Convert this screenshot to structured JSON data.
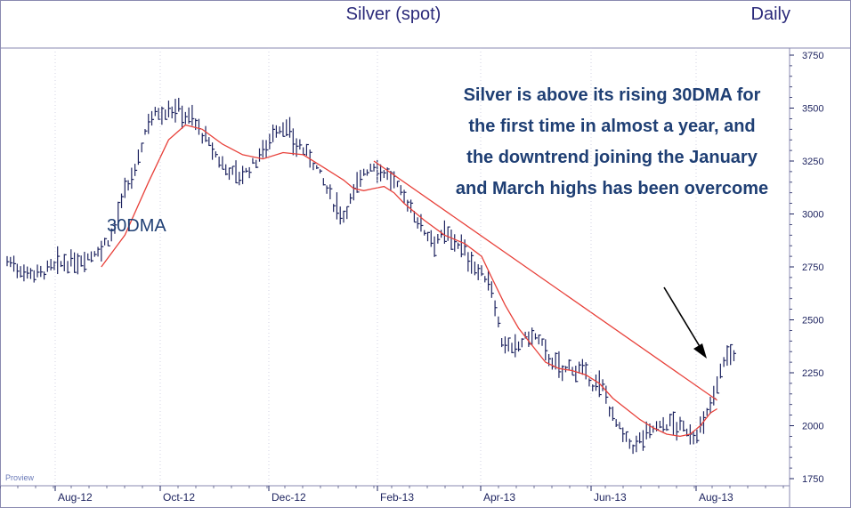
{
  "chart_data": {
    "type": "bar",
    "title": "Silver (spot)",
    "period": "Daily",
    "watermark": "Proview",
    "ylim": [
      1700,
      3800
    ],
    "y_ticks": [
      1750,
      2000,
      2250,
      2500,
      2750,
      3000,
      3250,
      3500,
      3750
    ],
    "x_ticks": [
      "Aug-12",
      "Oct-12",
      "Dec-12",
      "Feb-13",
      "Apr-13",
      "Jun-13",
      "Aug-13"
    ],
    "ma_label": "30DMA",
    "annotation_lines": [
      "Silver is above its rising 30DMA for",
      "the first time in almost a year, and",
      "the downtrend joining the January",
      "and March highs has been overcome"
    ],
    "price_path": [
      [
        0,
        2780
      ],
      [
        5,
        2730
      ],
      [
        10,
        2720
      ],
      [
        15,
        2760
      ],
      [
        20,
        2770
      ],
      [
        24,
        2800
      ],
      [
        28,
        2840
      ],
      [
        31,
        2900
      ],
      [
        33,
        3000
      ],
      [
        35,
        3100
      ],
      [
        38,
        3200
      ],
      [
        40,
        3320
      ],
      [
        42,
        3450
      ],
      [
        45,
        3480
      ],
      [
        50,
        3500
      ],
      [
        55,
        3450
      ],
      [
        58,
        3380
      ],
      [
        61,
        3300
      ],
      [
        64,
        3230
      ],
      [
        67,
        3200
      ],
      [
        70,
        3180
      ],
      [
        73,
        3230
      ],
      [
        76,
        3300
      ],
      [
        79,
        3380
      ],
      [
        82,
        3420
      ],
      [
        85,
        3350
      ],
      [
        88,
        3300
      ],
      [
        91,
        3250
      ],
      [
        94,
        3150
      ],
      [
        97,
        3050
      ],
      [
        100,
        3000
      ],
      [
        103,
        3100
      ],
      [
        106,
        3200
      ],
      [
        109,
        3230
      ],
      [
        112,
        3200
      ],
      [
        115,
        3150
      ],
      [
        118,
        3080
      ],
      [
        121,
        3000
      ],
      [
        124,
        2920
      ],
      [
        127,
        2880
      ],
      [
        130,
        2900
      ],
      [
        133,
        2880
      ],
      [
        136,
        2820
      ],
      [
        139,
        2750
      ],
      [
        142,
        2700
      ],
      [
        144,
        2650
      ],
      [
        147,
        2400
      ],
      [
        150,
        2350
      ],
      [
        153,
        2400
      ],
      [
        156,
        2430
      ],
      [
        159,
        2380
      ],
      [
        162,
        2300
      ],
      [
        165,
        2260
      ],
      [
        168,
        2280
      ],
      [
        171,
        2250
      ],
      [
        174,
        2200
      ],
      [
        177,
        2180
      ],
      [
        180,
        2050
      ],
      [
        183,
        1950
      ],
      [
        186,
        1900
      ],
      [
        189,
        1950
      ],
      [
        192,
        1990
      ],
      [
        195,
        2000
      ],
      [
        198,
        2010
      ],
      [
        201,
        1980
      ],
      [
        204,
        1960
      ],
      [
        207,
        2000
      ],
      [
        209,
        2100
      ],
      [
        211,
        2200
      ],
      [
        213,
        2320
      ],
      [
        215,
        2330
      ],
      [
        216,
        2340
      ]
    ],
    "series": [
      {
        "name": "30DMA",
        "color": "#e8413a",
        "points": [
          [
            28,
            2750
          ],
          [
            35,
            2900
          ],
          [
            42,
            3150
          ],
          [
            48,
            3350
          ],
          [
            53,
            3420
          ],
          [
            58,
            3400
          ],
          [
            64,
            3330
          ],
          [
            70,
            3280
          ],
          [
            76,
            3260
          ],
          [
            82,
            3290
          ],
          [
            88,
            3280
          ],
          [
            94,
            3220
          ],
          [
            100,
            3160
          ],
          [
            103,
            3120
          ],
          [
            106,
            3110
          ],
          [
            109,
            3120
          ],
          [
            112,
            3130
          ],
          [
            115,
            3100
          ],
          [
            118,
            3050
          ],
          [
            124,
            2970
          ],
          [
            130,
            2900
          ],
          [
            136,
            2860
          ],
          [
            141,
            2800
          ],
          [
            144,
            2700
          ],
          [
            148,
            2570
          ],
          [
            152,
            2460
          ],
          [
            156,
            2380
          ],
          [
            160,
            2300
          ],
          [
            164,
            2270
          ],
          [
            168,
            2260
          ],
          [
            172,
            2240
          ],
          [
            176,
            2200
          ],
          [
            180,
            2130
          ],
          [
            184,
            2080
          ],
          [
            188,
            2030
          ],
          [
            192,
            1990
          ],
          [
            196,
            1960
          ],
          [
            200,
            1950
          ],
          [
            203,
            1960
          ],
          [
            206,
            2000
          ],
          [
            209,
            2060
          ],
          [
            211,
            2080
          ]
        ]
      },
      {
        "name": "",
        "color": "#e8413a",
        "points": [
          [
            109,
            3250
          ],
          [
            211,
            2120
          ]
        ]
      }
    ]
  }
}
